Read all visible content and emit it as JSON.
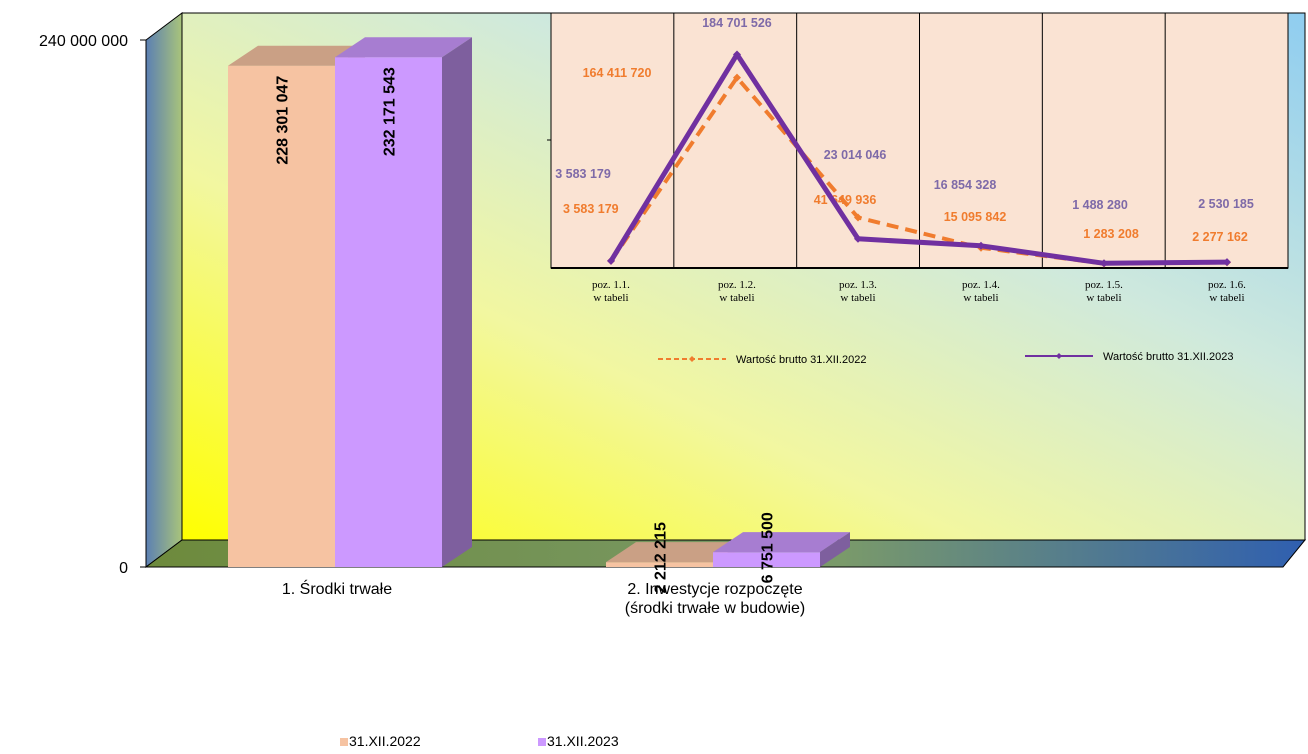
{
  "chart_data": [
    {
      "type": "bar",
      "categories": [
        "1. Środki trwałe",
        "2. Inwestycje rozpoczęte\n(środki trwałe w budowie)"
      ],
      "series": [
        {
          "name": "31.XII.2022",
          "values": [
            228301047,
            2212215
          ],
          "labels": [
            "228 301 047",
            "2 212 215"
          ],
          "color": "#f6c3a2"
        },
        {
          "name": "31.XII.2023",
          "values": [
            232171543,
            6751500
          ],
          "labels": [
            "232 171 543",
            "6 751 500"
          ],
          "color": "#cc99ff"
        }
      ],
      "ylim": [
        0,
        240000000
      ],
      "y_ticks": [
        "0",
        "240 000 000"
      ],
      "legend_position": "bottom"
    },
    {
      "type": "line",
      "categories": [
        "poz. 1.1.\nw tabeli",
        "poz. 1.2.\nw tabeli",
        "poz. 1.3.\nw tabeli",
        "poz. 1.4.\nw tabeli",
        "poz. 1.5.\nw tabeli",
        "poz. 1.6.\nw tabeli"
      ],
      "series": [
        {
          "name": "Wartość brutto 31.XII.2022",
          "values": [
            3583179,
            164411720,
            41649936,
            15095842,
            1283208,
            2277162
          ],
          "labels": [
            "3 583 179",
            "164 411 720",
            "41 649 936",
            "15 095 842",
            "1 283 208",
            "2 277 162"
          ],
          "color": "#f07c2e",
          "style": "dashed"
        },
        {
          "name": "Wartość brutto 31.XII.2023",
          "values": [
            3583179,
            184701526,
            23014046,
            16854328,
            1488280,
            2530185
          ],
          "labels": [
            "3 583 179",
            "184 701 526",
            "23 014 046",
            "16 854 328",
            "1 488 280",
            "2 530 185"
          ],
          "color": "#7030a0",
          "style": "solid"
        }
      ],
      "legend_position": "bottom"
    }
  ]
}
